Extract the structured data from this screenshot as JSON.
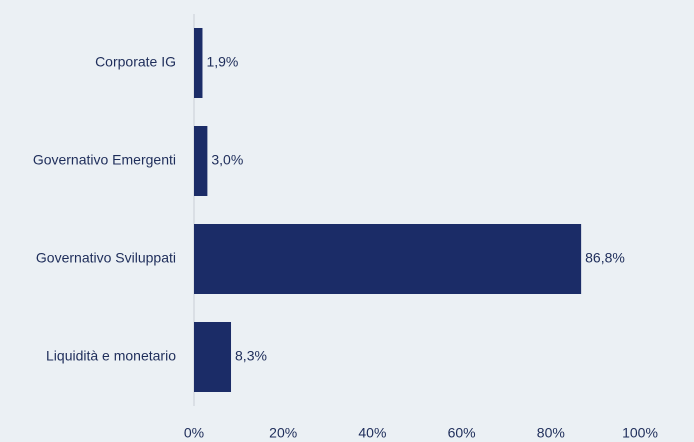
{
  "chart_data": {
    "type": "bar",
    "orientation": "horizontal",
    "categories": [
      "Corporate IG",
      "Governativo Emergenti",
      "Governativo Sviluppati",
      "Liquidità e monetario"
    ],
    "values": [
      1.9,
      3.0,
      86.8,
      8.3
    ],
    "value_labels": [
      "1,9%",
      "3,0%",
      "86,8%",
      "8,3%"
    ],
    "x_ticks": [
      "0%",
      "20%",
      "40%",
      "60%",
      "80%",
      "100%"
    ],
    "xlim": [
      0,
      100
    ],
    "grid": false,
    "bar_color": "#1b2c67",
    "background": "#ebf0f4",
    "text_color": "#1e2d5a"
  }
}
